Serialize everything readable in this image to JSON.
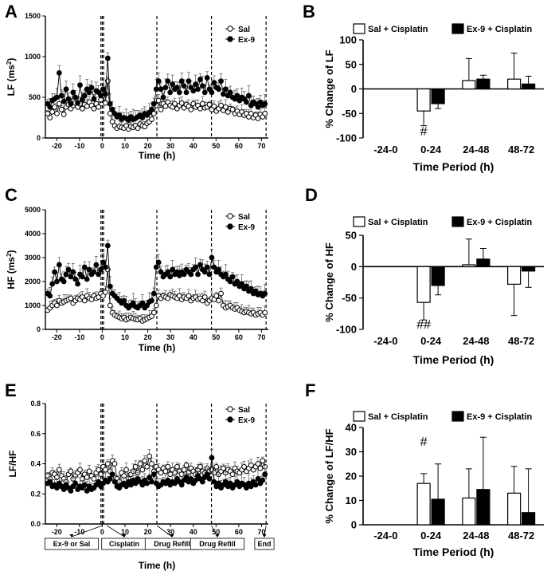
{
  "figure_panels": [
    "A",
    "B",
    "C",
    "D",
    "E",
    "F"
  ],
  "chart_data": [
    {
      "id": "A",
      "type": "line",
      "panel": "A",
      "title": "",
      "xlabel": "Time (h)",
      "ylabel": "LF (ms2)",
      "xlim": [
        -25,
        73
      ],
      "ylim": [
        0,
        1500
      ],
      "xticks": [
        -20,
        -10,
        0,
        10,
        20,
        30,
        40,
        50,
        60,
        70
      ],
      "yticks": [
        0,
        500,
        1000,
        1500
      ],
      "dashed_x": [
        -0.6,
        0,
        0.6,
        24,
        48,
        72
      ],
      "legend_position": "top-right",
      "series": [
        {
          "name": "Sal",
          "marker": "open-circle",
          "values": [
            300,
            250,
            320,
            380,
            300,
            420,
            350,
            290,
            380,
            410,
            360,
            400,
            430,
            380,
            420,
            360,
            410,
            390,
            440,
            400,
            360,
            420,
            380,
            470,
            520,
            430,
            700,
            300,
            200,
            150,
            120,
            140,
            130,
            120,
            150,
            110,
            140,
            130,
            150,
            120,
            170,
            150,
            140,
            180,
            200,
            230,
            300,
            400,
            460,
            350,
            420,
            390,
            440,
            400,
            380,
            420,
            360,
            400,
            430,
            370,
            410,
            390,
            350,
            420,
            380,
            400,
            360,
            420,
            370,
            380,
            410,
            350,
            390,
            330,
            360,
            400,
            340,
            380,
            320,
            360,
            350,
            300,
            330,
            290,
            320,
            280,
            300,
            260,
            300,
            250,
            280,
            240,
            290,
            260,
            300
          ]
        },
        {
          "name": "Ex-9",
          "marker": "filled-circle",
          "values": [
            420,
            380,
            460,
            480,
            500,
            800,
            520,
            450,
            600,
            480,
            420,
            560,
            500,
            430,
            650,
            470,
            520,
            600,
            560,
            620,
            480,
            580,
            560,
            520,
            600,
            540,
            980,
            420,
            350,
            300,
            260,
            280,
            230,
            250,
            240,
            220,
            260,
            230,
            240,
            260,
            280,
            250,
            300,
            280,
            310,
            350,
            420,
            600,
            700,
            600,
            500,
            620,
            700,
            560,
            660,
            600,
            620,
            560,
            700,
            640,
            560,
            700,
            620,
            580,
            660,
            600,
            720,
            640,
            560,
            740,
            600,
            560,
            680,
            620,
            600,
            700,
            540,
            600,
            520,
            560,
            500,
            480,
            520,
            460,
            500,
            480,
            440,
            520,
            400,
            440,
            420,
            380,
            440,
            400,
            420
          ]
        }
      ]
    },
    {
      "id": "B",
      "type": "bar",
      "panel": "B",
      "xlabel": "Time Period (h)",
      "ylabel": "% Change of LF",
      "categories": [
        "-24-0",
        "0-24",
        "24-48",
        "48-72"
      ],
      "ylim": [
        -100,
        100
      ],
      "yticks": [
        -100,
        -50,
        0,
        50,
        100
      ],
      "legend_position": "top",
      "series": [
        {
          "name": "Sal + Cisplatin",
          "color": "#ffffff",
          "values": [
            0,
            -45,
            17,
            20
          ],
          "errors": [
            0,
            30,
            45,
            53
          ]
        },
        {
          "name": "Ex-9 + Cisplatin",
          "color": "#000000",
          "values": [
            0,
            -30,
            20,
            10
          ],
          "errors": [
            0,
            10,
            8,
            16
          ]
        }
      ],
      "annotations": [
        {
          "category": "0-24",
          "text": "#"
        }
      ]
    },
    {
      "id": "C",
      "type": "line",
      "panel": "C",
      "title": "",
      "xlabel": "Time (h)",
      "ylabel": "HF (ms2)",
      "xlim": [
        -25,
        73
      ],
      "ylim": [
        0,
        5000
      ],
      "xticks": [
        -20,
        -10,
        0,
        10,
        20,
        30,
        40,
        50,
        60,
        70
      ],
      "yticks": [
        0,
        1000,
        2000,
        3000,
        4000,
        5000
      ],
      "dashed_x": [
        -0.6,
        0,
        0.6,
        24,
        48,
        72
      ],
      "legend_position": "top-right",
      "series": [
        {
          "name": "Sal",
          "marker": "open-circle",
          "values": [
            800,
            900,
            1000,
            1100,
            1000,
            1200,
            1100,
            1150,
            1200,
            1250,
            1300,
            1100,
            1200,
            1300,
            1250,
            1350,
            1200,
            1400,
            1300,
            1250,
            1400,
            1300,
            1350,
            1500,
            1400,
            1550,
            2500,
            1000,
            700,
            600,
            550,
            500,
            450,
            500,
            400,
            450,
            500,
            450,
            420,
            400,
            450,
            350,
            400,
            450,
            500,
            550,
            700,
            1000,
            1400,
            1300,
            1400,
            1350,
            1300,
            1450,
            1400,
            1350,
            1300,
            1400,
            1250,
            1350,
            1300,
            1400,
            1200,
            1300,
            1350,
            1250,
            1300,
            1200,
            1350,
            1100,
            1200,
            1300,
            1250,
            1400,
            1200,
            1500,
            1000,
            900,
            950,
            1000,
            900,
            850,
            900,
            800,
            750,
            700,
            750,
            700,
            650,
            700,
            600,
            650,
            700,
            600,
            700
          ]
        },
        {
          "name": "Ex-9",
          "marker": "filled-circle",
          "values": [
            1500,
            1400,
            1900,
            2400,
            2000,
            2700,
            2100,
            2000,
            2300,
            2500,
            2200,
            2400,
            2100,
            1900,
            2300,
            2200,
            2600,
            2100,
            2500,
            2300,
            2400,
            2700,
            2300,
            2500,
            2800,
            2600,
            3500,
            1800,
            1500,
            1400,
            1300,
            1200,
            1100,
            1200,
            1000,
            900,
            1000,
            1100,
            950,
            900,
            1000,
            1100,
            900,
            1000,
            1150,
            1200,
            1500,
            2600,
            2800,
            2400,
            2200,
            2300,
            2400,
            2200,
            2500,
            2300,
            2400,
            2250,
            2400,
            2300,
            2500,
            2400,
            2300,
            2500,
            2600,
            2300,
            2700,
            2500,
            2400,
            2600,
            2300,
            3000,
            2600,
            2400,
            2500,
            2300,
            2200,
            2300,
            2100,
            2000,
            2200,
            1900,
            2000,
            1800,
            1900,
            1700,
            1800,
            1600,
            1700,
            1500,
            1600,
            1450,
            1500,
            1400,
            1500
          ]
        }
      ]
    },
    {
      "id": "D",
      "type": "bar",
      "panel": "D",
      "xlabel": "Time Period (h)",
      "ylabel": "% Change of HF",
      "categories": [
        "-24-0",
        "0-24",
        "24-48",
        "48-72"
      ],
      "ylim": [
        -100,
        50
      ],
      "yticks": [
        -100,
        -50,
        0,
        50
      ],
      "legend_position": "top",
      "series": [
        {
          "name": "Sal + Cisplatin",
          "color": "#ffffff",
          "values": [
            0,
            -57,
            3,
            -28
          ],
          "errors": [
            0,
            28,
            41,
            50
          ]
        },
        {
          "name": "Ex-9 + Cisplatin",
          "color": "#000000",
          "values": [
            0,
            -30,
            12,
            -7
          ],
          "errors": [
            0,
            15,
            17,
            26
          ]
        }
      ],
      "annotations": [
        {
          "category": "0-24",
          "text": "##"
        }
      ]
    },
    {
      "id": "E",
      "type": "line",
      "panel": "E",
      "title": "",
      "xlabel": "Time (h)",
      "ylabel": "LF/HF",
      "xlim": [
        -25,
        73
      ],
      "ylim": [
        0,
        0.8
      ],
      "xticks": [
        -20,
        -10,
        0,
        10,
        20,
        30,
        40,
        50,
        60,
        70
      ],
      "yticks": [
        0.0,
        0.2,
        0.4,
        0.6,
        0.8
      ],
      "dashed_x": [
        -0.6,
        0,
        0.6,
        24,
        48,
        72
      ],
      "legend_position": "top-right",
      "series": [
        {
          "name": "Sal",
          "marker": "open-circle",
          "values": [
            0.32,
            0.3,
            0.34,
            0.33,
            0.31,
            0.36,
            0.32,
            0.3,
            0.28,
            0.33,
            0.35,
            0.3,
            0.32,
            0.34,
            0.36,
            0.3,
            0.33,
            0.31,
            0.35,
            0.32,
            0.3,
            0.34,
            0.36,
            0.33,
            0.38,
            0.36,
            0.4,
            0.35,
            0.42,
            0.4,
            0.3,
            0.28,
            0.34,
            0.32,
            0.36,
            0.3,
            0.33,
            0.35,
            0.38,
            0.34,
            0.4,
            0.36,
            0.42,
            0.38,
            0.45,
            0.4,
            0.35,
            0.38,
            0.36,
            0.34,
            0.37,
            0.35,
            0.38,
            0.33,
            0.36,
            0.34,
            0.38,
            0.35,
            0.33,
            0.36,
            0.39,
            0.34,
            0.37,
            0.35,
            0.33,
            0.36,
            0.38,
            0.35,
            0.34,
            0.37,
            0.35,
            0.36,
            0.34,
            0.38,
            0.33,
            0.35,
            0.37,
            0.34,
            0.36,
            0.35,
            0.33,
            0.37,
            0.35,
            0.34,
            0.36,
            0.38,
            0.35,
            0.37,
            0.39,
            0.36,
            0.38,
            0.4,
            0.37,
            0.42,
            0.38
          ]
        },
        {
          "name": "Ex-9",
          "marker": "filled-circle",
          "values": [
            0.27,
            0.28,
            0.25,
            0.26,
            0.24,
            0.27,
            0.25,
            0.23,
            0.26,
            0.24,
            0.22,
            0.25,
            0.27,
            0.23,
            0.25,
            0.24,
            0.26,
            0.22,
            0.25,
            0.23,
            0.24,
            0.26,
            0.28,
            0.25,
            0.27,
            0.29,
            0.28,
            0.3,
            0.33,
            0.28,
            0.25,
            0.24,
            0.26,
            0.27,
            0.25,
            0.28,
            0.26,
            0.29,
            0.27,
            0.3,
            0.28,
            0.26,
            0.29,
            0.27,
            0.31,
            0.28,
            0.33,
            0.27,
            0.25,
            0.26,
            0.28,
            0.27,
            0.29,
            0.26,
            0.28,
            0.27,
            0.3,
            0.28,
            0.26,
            0.29,
            0.31,
            0.28,
            0.3,
            0.27,
            0.29,
            0.32,
            0.3,
            0.28,
            0.31,
            0.33,
            0.3,
            0.44,
            0.28,
            0.25,
            0.27,
            0.24,
            0.26,
            0.28,
            0.25,
            0.27,
            0.24,
            0.26,
            0.28,
            0.25,
            0.27,
            0.26,
            0.24,
            0.27,
            0.25,
            0.28,
            0.26,
            0.3,
            0.27,
            0.29,
            0.33
          ]
        }
      ],
      "event_labels": [
        {
          "x": 0,
          "text": "Ex-9 or Sal"
        },
        {
          "x": 2,
          "text": "Cisplatin"
        },
        {
          "x": 24,
          "text": "Drug Refill"
        },
        {
          "x": 48,
          "text": "Drug Refill"
        },
        {
          "x": 72,
          "text": "End"
        }
      ]
    },
    {
      "id": "F",
      "type": "bar",
      "panel": "F",
      "xlabel": "Time Period (h)",
      "ylabel": "% Change of LF/HF",
      "categories": [
        "-24-0",
        "0-24",
        "24-48",
        "48-72"
      ],
      "ylim": [
        0,
        40
      ],
      "yticks": [
        0,
        10,
        20,
        30,
        40
      ],
      "legend_position": "top",
      "series": [
        {
          "name": "Sal + Cisplatin",
          "color": "#ffffff",
          "values": [
            0,
            17,
            11,
            13
          ],
          "errors": [
            0,
            4,
            12,
            11
          ]
        },
        {
          "name": "Ex-9 + Cisplatin",
          "color": "#000000",
          "values": [
            0,
            10.5,
            14.5,
            5
          ],
          "errors": [
            0,
            14.5,
            21.5,
            18
          ]
        }
      ],
      "annotations": [
        {
          "category": "0-24",
          "text": "#"
        }
      ]
    }
  ]
}
